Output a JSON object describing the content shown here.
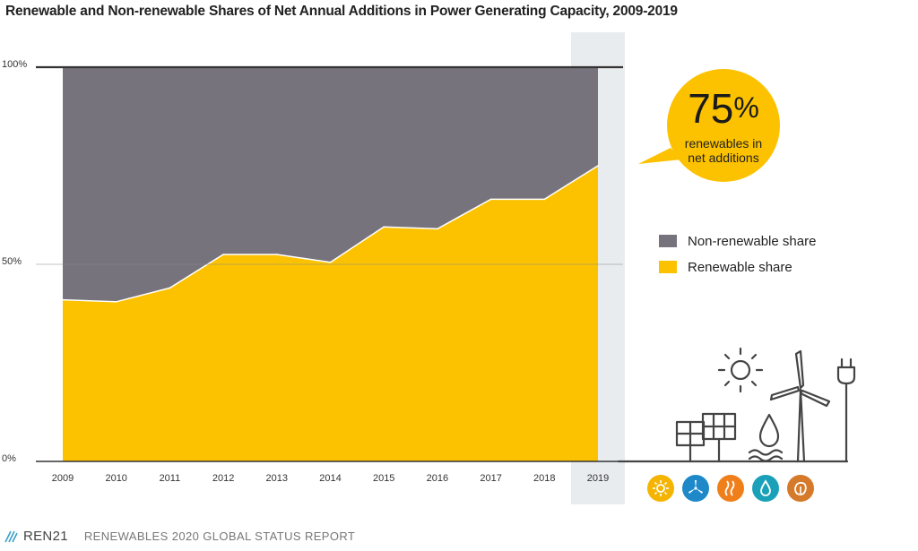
{
  "title": "Renewable and Non-renewable Shares of Net Annual Additions in Power Generating Capacity, 2009-2019",
  "chart_data": {
    "type": "area",
    "title": "Renewable and Non-renewable Shares of Net Annual Additions in Power Generating Capacity, 2009-2019",
    "x": [
      "2009",
      "2010",
      "2011",
      "2012",
      "2013",
      "2014",
      "2015",
      "2016",
      "2017",
      "2018",
      "2019"
    ],
    "series": [
      {
        "name": "Renewable share",
        "values": [
          41,
          40.5,
          44,
          52.5,
          52.5,
          50.5,
          59.5,
          59,
          66.5,
          66.5,
          75
        ],
        "color": "#FCC200"
      },
      {
        "name": "Non-renewable share",
        "values": [
          59,
          59.5,
          56,
          47.5,
          47.5,
          49.5,
          40.5,
          41,
          33.5,
          33.5,
          25
        ],
        "color": "#77737D"
      }
    ],
    "stacked": true,
    "ylim": [
      0,
      100
    ],
    "yticks": [
      "0%",
      "50%",
      "100%"
    ],
    "highlight_year": "2019",
    "legend_position": "right"
  },
  "callout": {
    "value": "75",
    "unit": "%",
    "text_line1": "renewables in",
    "text_line2": "net additions",
    "color": "#FCC200"
  },
  "legend": [
    {
      "label": "Non-renewable share",
      "color": "#77737D"
    },
    {
      "label": "Renewable share",
      "color": "#FCC200"
    }
  ],
  "footer": {
    "logo": "REN21",
    "report": "RENEWABLES 2020 GLOBAL STATUS REPORT"
  },
  "tech_icons": [
    {
      "name": "solar-icon",
      "color": "#F4B400"
    },
    {
      "name": "wind-icon",
      "color": "#1E88C8"
    },
    {
      "name": "geothermal-icon",
      "color": "#EF7F1A"
    },
    {
      "name": "hydro-icon",
      "color": "#1AA0B8"
    },
    {
      "name": "bioenergy-icon",
      "color": "#D57A2A"
    }
  ]
}
